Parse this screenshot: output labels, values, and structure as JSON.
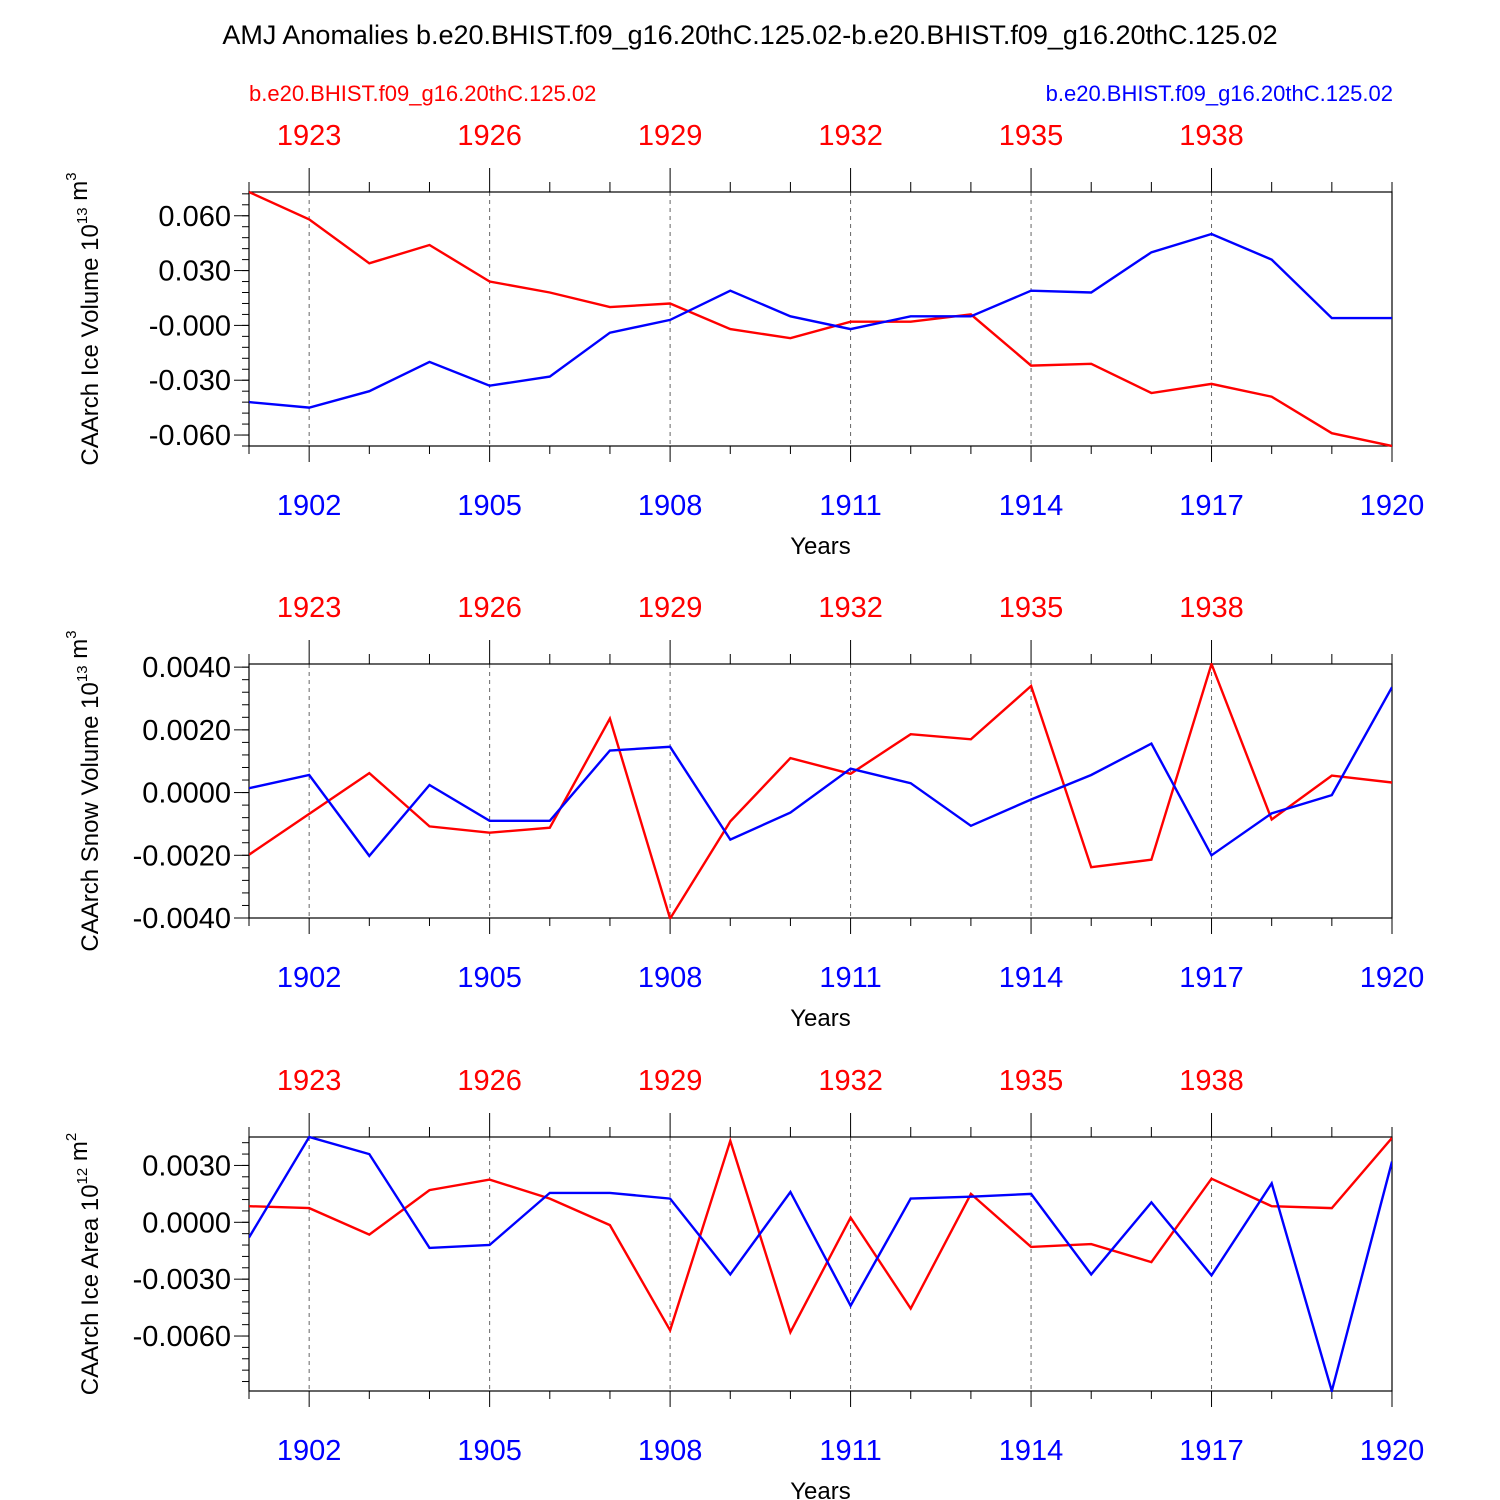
{
  "title": "AMJ Anomalies b.e20.BHIST.f09_g16.20thC.125.02-b.e20.BHIST.f09_g16.20thC.125.02",
  "legend": {
    "left": {
      "label": "b.e20.BHIST.f09_g16.20thC.125.02",
      "color": "#ff0000"
    },
    "right": {
      "label": "b.e20.BHIST.f09_g16.20thC.125.02",
      "color": "#0000ff"
    }
  },
  "colors": {
    "series_a": "#ff0000",
    "series_b": "#0000ff",
    "axis": "#000000",
    "grid": "#666666"
  },
  "chart_data": [
    {
      "type": "line",
      "ylabel": "CAArch Ice Volume 10",
      "ylabel_exp": "13",
      "ylabel_unit": " m",
      "ylabel_unit_exp": "3",
      "xlabel": "Years",
      "x_bottom_range": [
        1901,
        1920
      ],
      "x_top_range": [
        1922,
        1941
      ],
      "bottom_ticks": [
        "1902",
        "1905",
        "1908",
        "1911",
        "1914",
        "1917",
        "1920"
      ],
      "top_ticks": [
        "1923",
        "1926",
        "1929",
        "1932",
        "1935",
        "1938"
      ],
      "ylim": [
        -0.066,
        0.073
      ],
      "yticks": [
        0.06,
        0.03,
        0.0,
        -0.03,
        -0.06
      ],
      "yticklabels": [
        "0.060",
        "0.030",
        "-0.000",
        "-0.030",
        "-0.060"
      ],
      "yminor_step": 0.006,
      "series": [
        {
          "name": "b.e20.BHIST.f09_g16.20thC.125.02",
          "axis": "top",
          "color": "#ff0000",
          "values": [
            0.073,
            0.058,
            0.034,
            0.044,
            0.024,
            0.018,
            0.01,
            0.012,
            -0.002,
            -0.007,
            0.002,
            0.002,
            0.006,
            -0.022,
            -0.021,
            -0.037,
            -0.032,
            -0.039,
            -0.059,
            -0.066
          ]
        },
        {
          "name": "b.e20.BHIST.f09_g16.20thC.125.02",
          "axis": "bottom",
          "color": "#0000ff",
          "values": [
            -0.042,
            -0.045,
            -0.036,
            -0.02,
            -0.033,
            -0.028,
            -0.004,
            0.003,
            0.019,
            0.005,
            -0.002,
            0.005,
            0.005,
            0.019,
            0.018,
            0.04,
            0.05,
            0.036,
            0.004,
            0.004
          ]
        }
      ]
    },
    {
      "type": "line",
      "ylabel": "CAArch Snow Volume 10",
      "ylabel_exp": "13",
      "ylabel_unit": " m",
      "ylabel_unit_exp": "3",
      "xlabel": "Years",
      "x_bottom_range": [
        1901,
        1920
      ],
      "x_top_range": [
        1922,
        1941
      ],
      "bottom_ticks": [
        "1902",
        "1905",
        "1908",
        "1911",
        "1914",
        "1917",
        "1920"
      ],
      "top_ticks": [
        "1923",
        "1926",
        "1929",
        "1932",
        "1935",
        "1938"
      ],
      "ylim": [
        -0.004,
        0.0041
      ],
      "yticks": [
        0.004,
        0.002,
        0.0,
        -0.002,
        -0.004
      ],
      "yticklabels": [
        "0.0040",
        "0.0020",
        "0.0000",
        "-0.0020",
        "-0.0040"
      ],
      "yminor_step": 0.0004,
      "series": [
        {
          "name": "b.e20.BHIST.f09_g16.20thC.125.02",
          "axis": "top",
          "color": "#ff0000",
          "values": [
            -0.00198,
            -0.00068,
            0.00062,
            -0.00108,
            -0.00128,
            -0.00112,
            0.00236,
            -0.00402,
            -0.00092,
            0.0011,
            0.0006,
            0.00186,
            0.0017,
            0.0034,
            -0.00238,
            -0.00214,
            0.0041,
            -0.00086,
            0.00054,
            0.00032
          ]
        },
        {
          "name": "b.e20.BHIST.f09_g16.20thC.125.02",
          "axis": "bottom",
          "color": "#0000ff",
          "values": [
            0.00014,
            0.00056,
            -0.00202,
            0.00024,
            -0.0009,
            -0.0009,
            0.00134,
            0.00146,
            -0.0015,
            -0.00064,
            0.00076,
            0.0003,
            -0.00106,
            -0.00022,
            0.00056,
            0.00156,
            -0.002,
            -0.00066,
            -8e-05,
            0.00336
          ]
        }
      ]
    },
    {
      "type": "line",
      "ylabel": "CAArch Ice Area 10",
      "ylabel_exp": "12",
      "ylabel_unit": " m",
      "ylabel_unit_exp": "2",
      "xlabel": "Years",
      "x_bottom_range": [
        1901,
        1920
      ],
      "x_top_range": [
        1922,
        1941
      ],
      "bottom_ticks": [
        "1902",
        "1905",
        "1908",
        "1911",
        "1914",
        "1917",
        "1920"
      ],
      "top_ticks": [
        "1923",
        "1926",
        "1929",
        "1932",
        "1935",
        "1938"
      ],
      "ylim": [
        -0.0089,
        0.0045
      ],
      "yticks": [
        0.003,
        0.0,
        -0.003,
        -0.006
      ],
      "yticklabels": [
        "0.0030",
        "0.0000",
        "-0.0030",
        "-0.0060"
      ],
      "yminor_step": 0.0006,
      "series": [
        {
          "name": "b.e20.BHIST.f09_g16.20thC.125.02",
          "axis": "top",
          "color": "#ff0000",
          "values": [
            0.00085,
            0.00075,
            -0.00065,
            0.0017,
            0.00225,
            0.00125,
            -0.00015,
            -0.0057,
            0.0043,
            -0.0058,
            0.00025,
            -0.00455,
            0.0015,
            -0.0013,
            -0.00115,
            -0.0021,
            0.0023,
            0.00085,
            0.00075,
            0.00445
          ]
        },
        {
          "name": "b.e20.BHIST.f09_g16.20thC.125.02",
          "axis": "bottom",
          "color": "#0000ff",
          "values": [
            -0.0008,
            0.0045,
            0.0036,
            -0.00135,
            -0.0012,
            0.00155,
            0.00155,
            0.00125,
            -0.00275,
            0.0016,
            -0.0044,
            0.00125,
            0.00135,
            0.0015,
            -0.00275,
            0.00105,
            -0.0028,
            0.00205,
            -0.0089,
            0.0032
          ]
        }
      ]
    }
  ]
}
